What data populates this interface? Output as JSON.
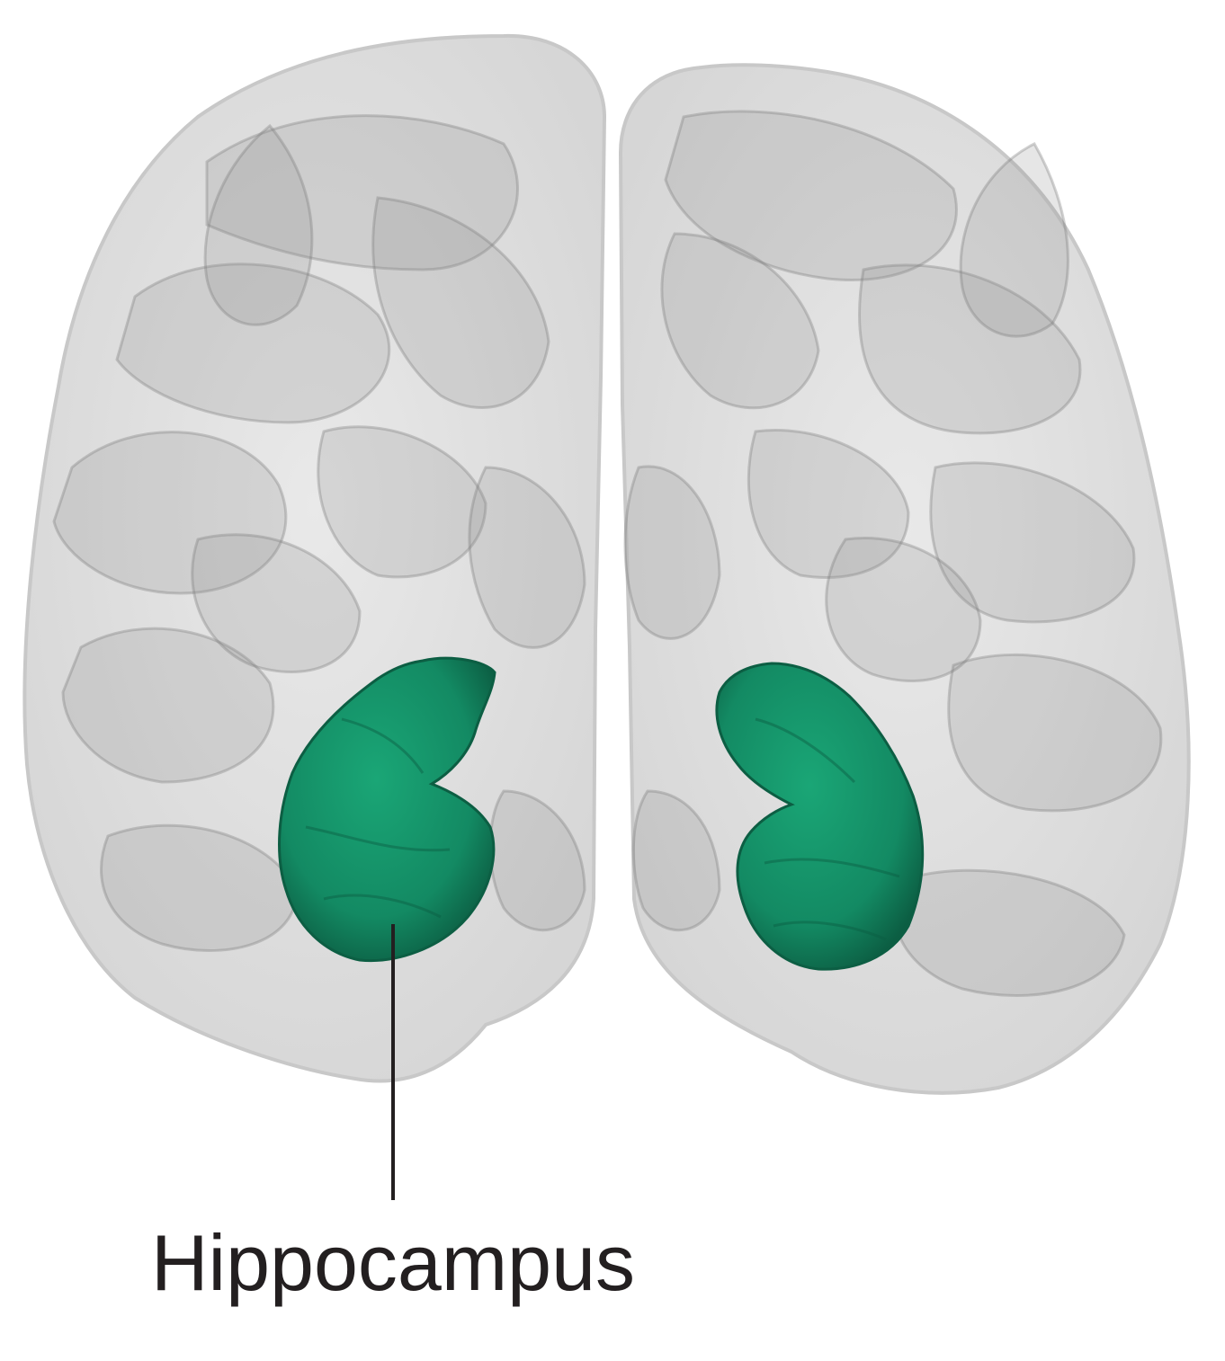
{
  "diagram": {
    "view": "coronal",
    "structures": [
      {
        "id": "brain",
        "render": "translucent",
        "color": "#9a9a9a",
        "hemispheres": [
          "left-hemisphere",
          "right-hemisphere"
        ]
      },
      {
        "id": "hippocampus",
        "label": "Hippocampus",
        "color": "#138a63",
        "highlight_color": "#1aa676",
        "shadow_color": "#0c5e43",
        "instances": [
          "left-hippocampus",
          "right-hippocampus"
        ]
      }
    ],
    "leader_line_color": "#231f20"
  }
}
